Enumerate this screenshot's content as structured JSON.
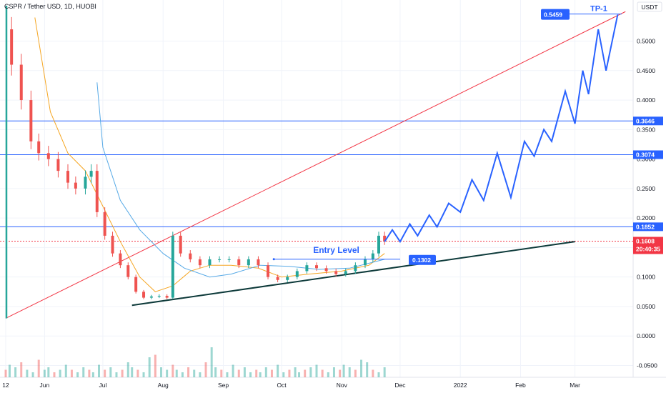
{
  "chart_data": {
    "type": "candlestick",
    "title": "CSPR / Tether USD, 1D, HUOBI",
    "currency": "USDT",
    "ylim": [
      -0.07,
      0.56
    ],
    "price_axis_ticks": [
      "0.5000",
      "0.4500",
      "0.4000",
      "0.3500",
      "0.3000",
      "0.2500",
      "0.2000",
      "0.1500",
      "0.1000",
      "0.0500",
      "0.0000",
      "-0.0500"
    ],
    "time_axis_ticks": [
      {
        "label": "12",
        "date": "2021-05-12"
      },
      {
        "label": "Jun",
        "date": "2021-06-01"
      },
      {
        "label": "Jul",
        "date": "2021-07-01"
      },
      {
        "label": "Aug",
        "date": "2021-08-01"
      },
      {
        "label": "Sep",
        "date": "2021-09-01"
      },
      {
        "label": "Oct",
        "date": "2021-10-01"
      },
      {
        "label": "Nov",
        "date": "2021-11-01"
      },
      {
        "label": "Dec",
        "date": "2021-12-01"
      },
      {
        "label": "2022",
        "date": "2022-01-01"
      },
      {
        "label": "Feb",
        "date": "2022-02-01"
      },
      {
        "label": "Mar",
        "date": "2022-03-01"
      }
    ],
    "horizontal_levels": [
      {
        "value": 0.3646,
        "label": "0.3646"
      },
      {
        "value": 0.3074,
        "label": "0.3074"
      },
      {
        "value": 0.1852,
        "label": "0.1852"
      }
    ],
    "last_price": {
      "value": 0.1608,
      "label": "0.1608",
      "countdown": "20:40:35"
    },
    "entry_level": {
      "value": 0.1302,
      "label": "0.1302",
      "text": "Entry Level",
      "date": "2021-09-27"
    },
    "target": {
      "value": 0.5459,
      "label": "0.5459",
      "text": "TP-1"
    },
    "close_series": [
      {
        "date": "2021-05-12",
        "close": 0.52
      },
      {
        "date": "2021-05-15",
        "close": 0.46
      },
      {
        "date": "2021-05-20",
        "close": 0.4
      },
      {
        "date": "2021-05-25",
        "close": 0.33
      },
      {
        "date": "2021-05-29",
        "close": 0.31
      },
      {
        "date": "2021-06-03",
        "close": 0.3
      },
      {
        "date": "2021-06-08",
        "close": 0.28
      },
      {
        "date": "2021-06-13",
        "close": 0.26
      },
      {
        "date": "2021-06-17",
        "close": 0.25
      },
      {
        "date": "2021-06-22",
        "close": 0.27
      },
      {
        "date": "2021-06-25",
        "close": 0.28
      },
      {
        "date": "2021-06-28",
        "close": 0.21
      },
      {
        "date": "2021-07-02",
        "close": 0.17
      },
      {
        "date": "2021-07-06",
        "close": 0.14
      },
      {
        "date": "2021-07-10",
        "close": 0.12
      },
      {
        "date": "2021-07-14",
        "close": 0.1
      },
      {
        "date": "2021-07-18",
        "close": 0.075
      },
      {
        "date": "2021-07-22",
        "close": 0.065
      },
      {
        "date": "2021-07-26",
        "close": 0.067
      },
      {
        "date": "2021-07-30",
        "close": 0.068
      },
      {
        "date": "2021-08-03",
        "close": 0.065
      },
      {
        "date": "2021-08-06",
        "close": 0.17
      },
      {
        "date": "2021-08-10",
        "close": 0.14
      },
      {
        "date": "2021-08-15",
        "close": 0.13
      },
      {
        "date": "2021-08-20",
        "close": 0.12
      },
      {
        "date": "2021-08-25",
        "close": 0.13
      },
      {
        "date": "2021-08-30",
        "close": 0.13
      },
      {
        "date": "2021-09-04",
        "close": 0.13
      },
      {
        "date": "2021-09-09",
        "close": 0.12
      },
      {
        "date": "2021-09-14",
        "close": 0.13
      },
      {
        "date": "2021-09-19",
        "close": 0.12
      },
      {
        "date": "2021-09-24",
        "close": 0.1
      },
      {
        "date": "2021-09-29",
        "close": 0.095
      },
      {
        "date": "2021-10-04",
        "close": 0.1
      },
      {
        "date": "2021-10-09",
        "close": 0.11
      },
      {
        "date": "2021-10-14",
        "close": 0.12
      },
      {
        "date": "2021-10-19",
        "close": 0.115
      },
      {
        "date": "2021-10-24",
        "close": 0.11
      },
      {
        "date": "2021-10-29",
        "close": 0.105
      },
      {
        "date": "2021-11-03",
        "close": 0.11
      },
      {
        "date": "2021-11-08",
        "close": 0.12
      },
      {
        "date": "2021-11-13",
        "close": 0.13
      },
      {
        "date": "2021-11-17",
        "close": 0.14
      },
      {
        "date": "2021-11-20",
        "close": 0.17
      },
      {
        "date": "2021-11-23",
        "close": 0.1608
      }
    ],
    "projection": [
      {
        "date": "2021-11-23",
        "value": 0.16
      },
      {
        "date": "2021-11-27",
        "value": 0.18
      },
      {
        "date": "2021-12-01",
        "value": 0.16
      },
      {
        "date": "2021-12-06",
        "value": 0.19
      },
      {
        "date": "2021-12-10",
        "value": 0.17
      },
      {
        "date": "2021-12-16",
        "value": 0.205
      },
      {
        "date": "2021-12-20",
        "value": 0.185
      },
      {
        "date": "2021-12-26",
        "value": 0.225
      },
      {
        "date": "2022-01-01",
        "value": 0.21
      },
      {
        "date": "2022-01-07",
        "value": 0.265
      },
      {
        "date": "2022-01-13",
        "value": 0.23
      },
      {
        "date": "2022-01-20",
        "value": 0.31
      },
      {
        "date": "2022-01-27",
        "value": 0.235
      },
      {
        "date": "2022-02-03",
        "value": 0.33
      },
      {
        "date": "2022-02-08",
        "value": 0.305
      },
      {
        "date": "2022-02-13",
        "value": 0.35
      },
      {
        "date": "2022-02-17",
        "value": 0.33
      },
      {
        "date": "2022-02-24",
        "value": 0.415
      },
      {
        "date": "2022-03-01",
        "value": 0.36
      },
      {
        "date": "2022-03-05",
        "value": 0.45
      },
      {
        "date": "2022-03-08",
        "value": 0.41
      },
      {
        "date": "2022-03-13",
        "value": 0.52
      },
      {
        "date": "2022-03-17",
        "value": 0.45
      },
      {
        "date": "2022-03-23",
        "value": 0.545
      }
    ],
    "ma_fast": [
      {
        "date": "2021-05-27",
        "value": 0.54
      },
      {
        "date": "2021-06-04",
        "value": 0.38
      },
      {
        "date": "2021-06-13",
        "value": 0.31
      },
      {
        "date": "2021-06-22",
        "value": 0.28
      },
      {
        "date": "2021-07-01",
        "value": 0.22
      },
      {
        "date": "2021-07-10",
        "value": 0.16
      },
      {
        "date": "2021-07-20",
        "value": 0.1
      },
      {
        "date": "2021-07-28",
        "value": 0.075
      },
      {
        "date": "2021-08-06",
        "value": 0.085
      },
      {
        "date": "2021-08-15",
        "value": 0.11
      },
      {
        "date": "2021-08-25",
        "value": 0.12
      },
      {
        "date": "2021-09-05",
        "value": 0.12
      },
      {
        "date": "2021-09-19",
        "value": 0.115
      },
      {
        "date": "2021-10-01",
        "value": 0.1
      },
      {
        "date": "2021-10-15",
        "value": 0.105
      },
      {
        "date": "2021-11-01",
        "value": 0.11
      },
      {
        "date": "2021-11-15",
        "value": 0.12
      },
      {
        "date": "2021-11-23",
        "value": 0.14
      }
    ],
    "ma_slow": [
      {
        "date": "2021-06-28",
        "value": 0.43
      },
      {
        "date": "2021-07-01",
        "value": 0.32
      },
      {
        "date": "2021-07-10",
        "value": 0.23
      },
      {
        "date": "2021-07-20",
        "value": 0.18
      },
      {
        "date": "2021-08-01",
        "value": 0.14
      },
      {
        "date": "2021-08-12",
        "value": 0.115
      },
      {
        "date": "2021-08-25",
        "value": 0.1
      },
      {
        "date": "2021-09-05",
        "value": 0.105
      },
      {
        "date": "2021-09-20",
        "value": 0.12
      },
      {
        "date": "2021-10-05",
        "value": 0.118
      },
      {
        "date": "2021-10-20",
        "value": 0.113
      },
      {
        "date": "2021-11-05",
        "value": 0.115
      },
      {
        "date": "2021-11-23",
        "value": 0.13
      }
    ],
    "trendline_support": [
      {
        "date": "2021-07-16",
        "value": 0.052
      },
      {
        "date": "2022-03-01",
        "value": 0.16
      }
    ],
    "trendline_resistance": [
      {
        "date": "2021-05-12",
        "value": 0.03
      },
      {
        "date": "2022-03-27",
        "value": 0.55
      }
    ],
    "volume_bars": [
      3,
      5,
      4,
      6,
      3,
      2,
      7,
      3,
      4,
      2,
      3,
      5,
      3,
      2,
      4,
      3,
      2,
      5,
      3,
      4,
      2,
      3,
      6,
      4,
      3,
      2,
      8,
      9,
      4,
      3,
      5,
      3,
      2,
      4,
      3,
      2,
      6,
      12,
      4,
      3,
      2,
      5,
      3,
      4,
      2,
      3,
      2,
      4,
      3,
      5,
      2,
      3,
      4,
      2,
      3,
      4,
      5,
      3,
      2,
      4,
      3,
      5,
      4,
      3,
      7,
      6,
      3,
      2,
      4
    ],
    "colors": {
      "up": "#26a69a",
      "down": "#ef5350",
      "projection": "#2962ff",
      "level": "#2962ff",
      "resistance": "#f23645",
      "support": "#0d3a3a",
      "ma_fast": "#f5a623",
      "ma_slow": "#56a9e6",
      "last_price": "#f23645",
      "grid": "#f0f3fa"
    }
  }
}
